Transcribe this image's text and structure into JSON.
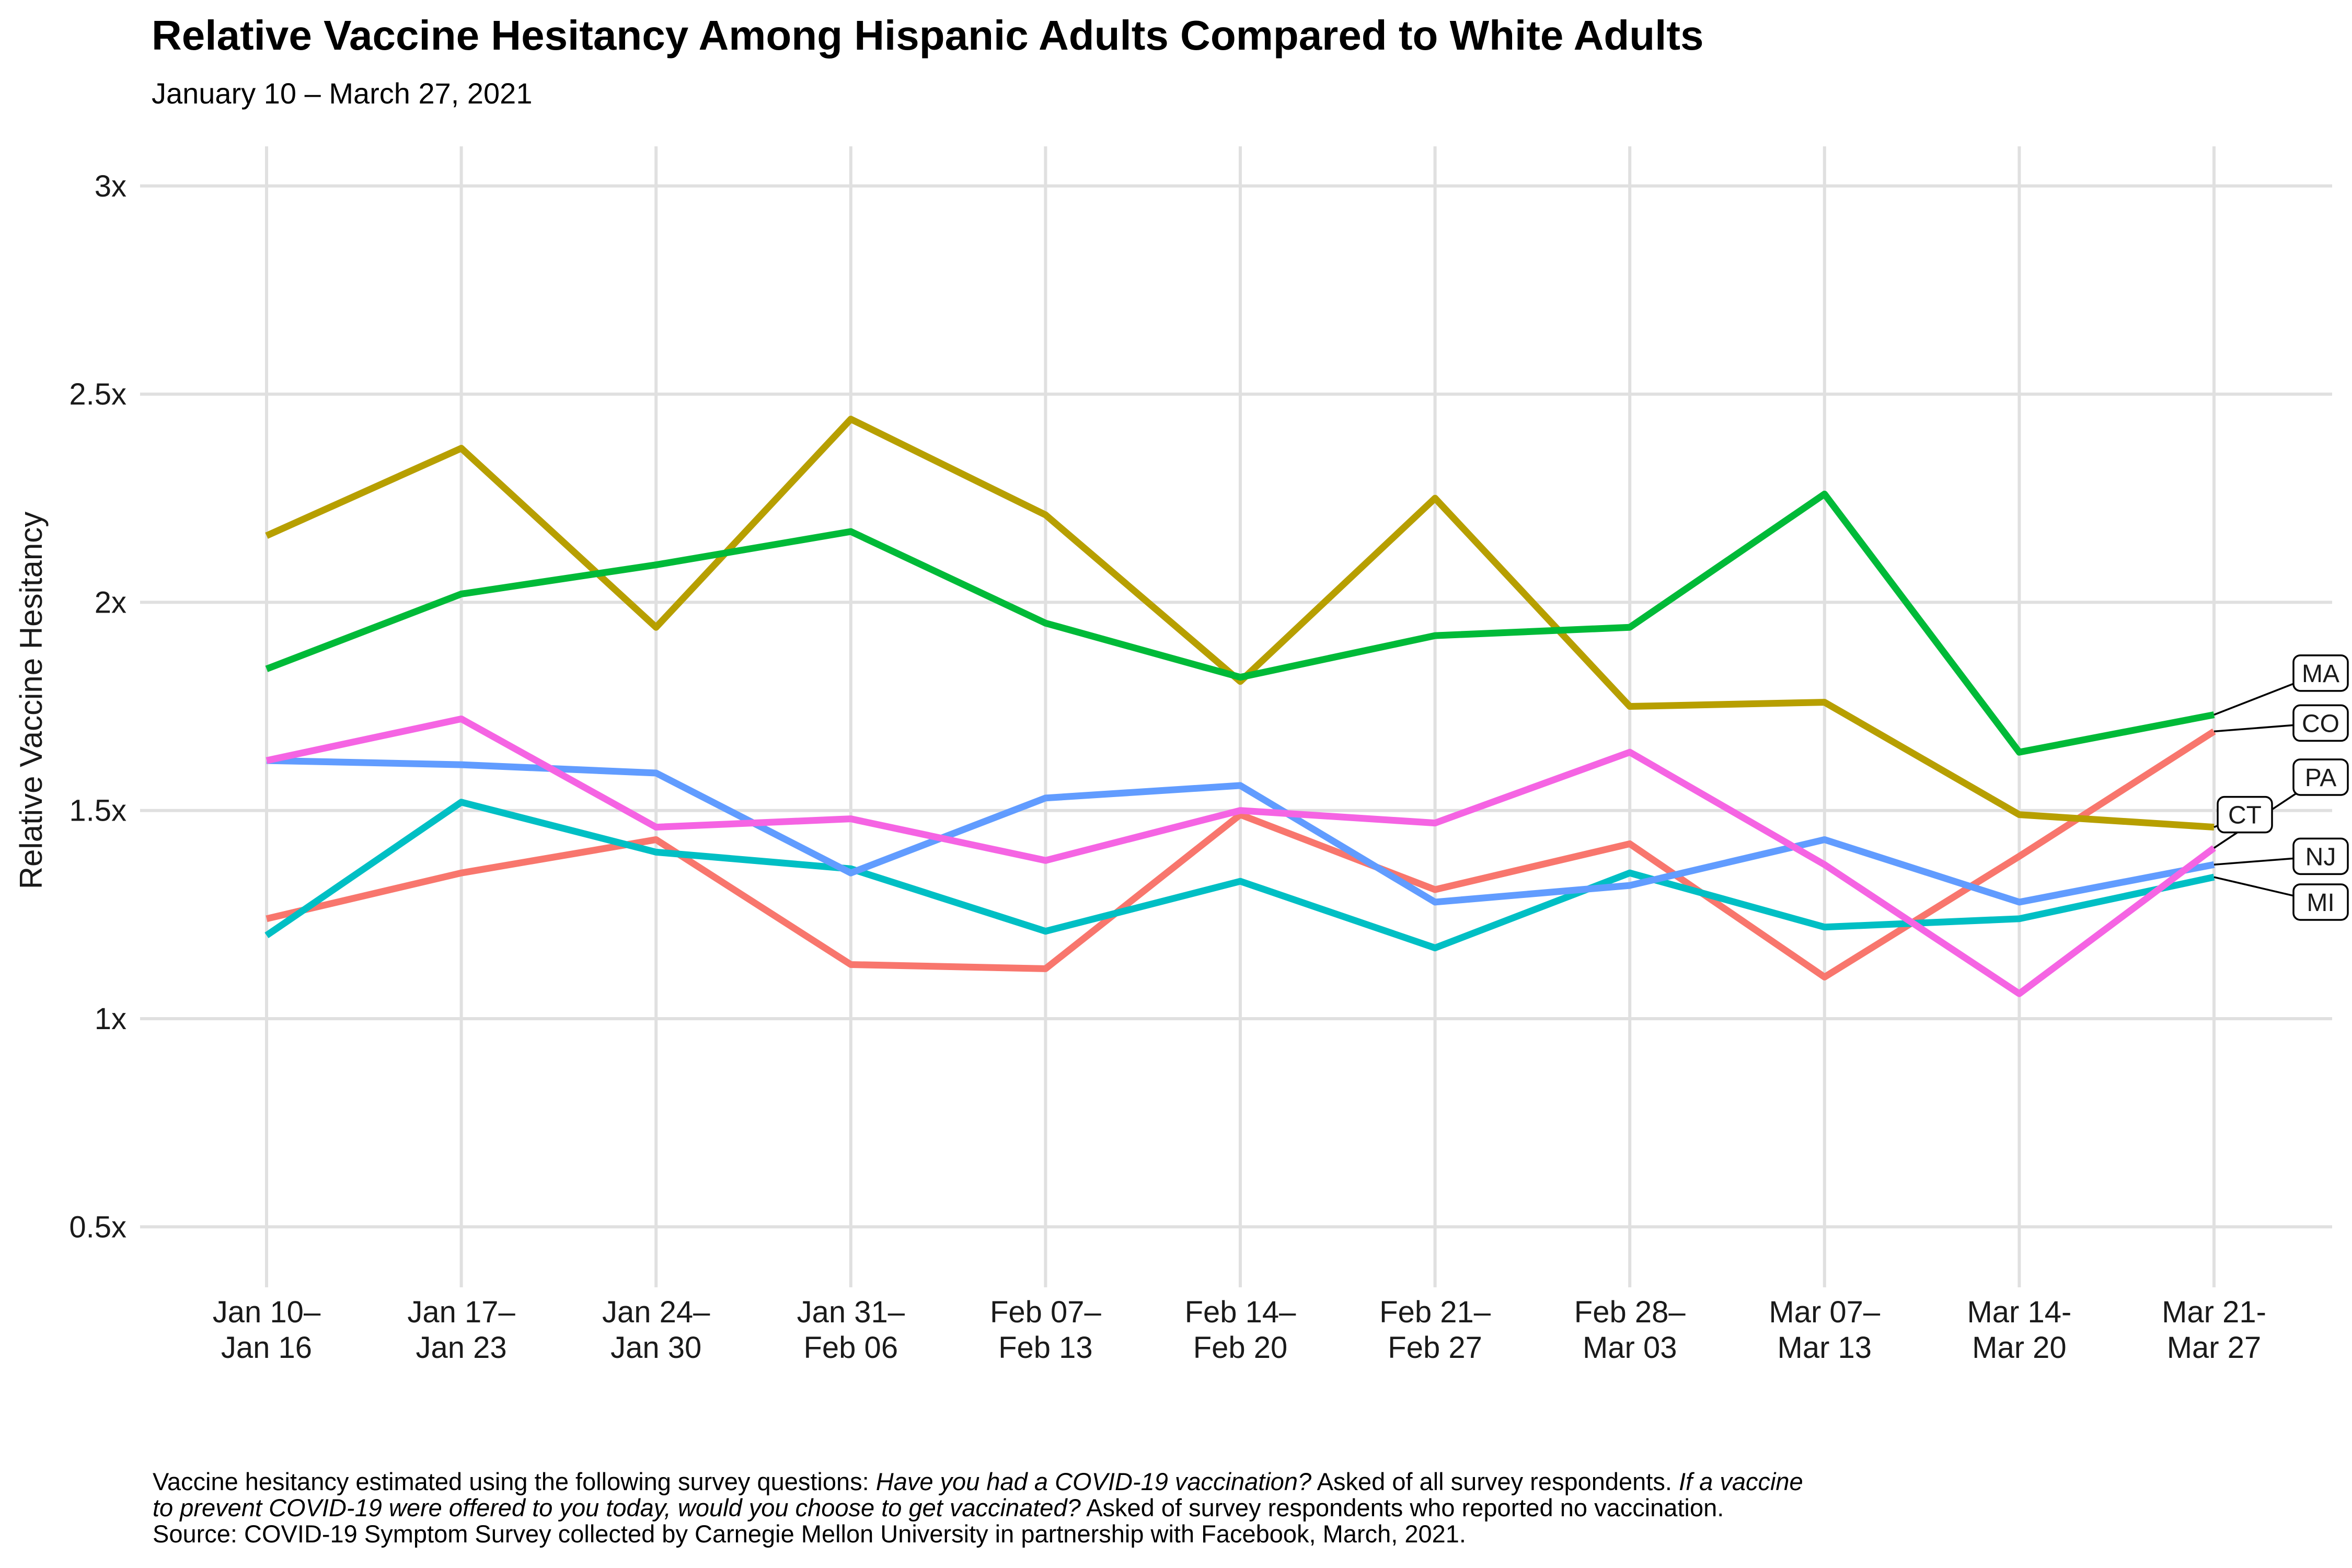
{
  "header": {
    "title": "Relative Vaccine Hesitancy Among Hispanic Adults Compared to White Adults",
    "subtitle": "January 10 – March 27, 2021"
  },
  "chart_data": {
    "type": "line",
    "title": "Relative Vaccine Hesitancy Among Hispanic Adults Compared to White Adults",
    "subtitle": "January 10 – March 27, 2021",
    "xlabel": "",
    "ylabel": "Relative Vaccine Hesitancy",
    "ylim": [
      0.35,
      3.1
    ],
    "grid": true,
    "legend_position": "end-labels-right",
    "y_ticks": [
      {
        "value": 0.5,
        "label": "0.5x"
      },
      {
        "value": 1,
        "label": "1x"
      },
      {
        "value": 1.5,
        "label": "1.5x"
      },
      {
        "value": 2,
        "label": "2x"
      },
      {
        "value": 2.5,
        "label": "2.5x"
      },
      {
        "value": 3,
        "label": "3x"
      }
    ],
    "categories": [
      [
        "Jan 10–",
        "Jan 16"
      ],
      [
        "Jan 17–",
        "Jan 23"
      ],
      [
        "Jan 24–",
        "Jan 30"
      ],
      [
        "Jan 31–",
        "Feb 06"
      ],
      [
        "Feb 07–",
        "Feb 13"
      ],
      [
        "Feb 14–",
        "Feb 20"
      ],
      [
        "Feb 21–",
        "Feb 27"
      ],
      [
        "Feb 28–",
        "Mar 03"
      ],
      [
        "Mar 07–",
        "Mar 13"
      ],
      [
        "Mar 14-",
        "Mar 20"
      ],
      [
        "Mar 21-",
        "Mar 27"
      ]
    ],
    "series": [
      {
        "name": "CO",
        "color": "#F8766D",
        "values": [
          1.24,
          1.35,
          1.43,
          1.13,
          1.12,
          1.49,
          1.31,
          1.42,
          1.1,
          1.39,
          1.69
        ]
      },
      {
        "name": "CT",
        "color": "#B79F00",
        "values": [
          2.16,
          2.37,
          1.94,
          2.44,
          2.21,
          1.81,
          2.25,
          1.75,
          1.76,
          1.49,
          1.46
        ]
      },
      {
        "name": "MA",
        "color": "#00BA38",
        "values": [
          1.84,
          2.02,
          2.09,
          2.17,
          1.95,
          1.82,
          1.92,
          1.94,
          2.26,
          1.64,
          1.73
        ]
      },
      {
        "name": "MI",
        "color": "#00BFC4",
        "values": [
          1.2,
          1.52,
          1.4,
          1.36,
          1.21,
          1.33,
          1.17,
          1.35,
          1.22,
          1.24,
          1.34
        ]
      },
      {
        "name": "NJ",
        "color": "#619CFF",
        "values": [
          1.62,
          1.61,
          1.59,
          1.35,
          1.53,
          1.56,
          1.28,
          1.32,
          1.43,
          1.28,
          1.37
        ]
      },
      {
        "name": "PA",
        "color": "#F564E3",
        "values": [
          1.62,
          1.72,
          1.46,
          1.48,
          1.38,
          1.5,
          1.47,
          1.64,
          1.37,
          1.06,
          1.41
        ]
      }
    ],
    "end_labels": [
      {
        "name": "MA",
        "y_value": 1.83
      },
      {
        "name": "CO",
        "y_value": 1.71
      },
      {
        "name": "PA",
        "y_value": 1.58
      },
      {
        "name": "CT",
        "y_value": 1.49,
        "x_center": 4295
      },
      {
        "name": "NJ",
        "y_value": 1.39
      },
      {
        "name": "MI",
        "y_value": 1.28
      }
    ]
  },
  "caption": {
    "lines": [
      [
        {
          "text": "Vaccine hesitancy estimated using the following survey questions: ",
          "italic": false
        },
        {
          "text": "Have you had a COVID-19 vaccination?",
          "italic": true
        },
        {
          "text": " Asked of all survey respondents. ",
          "italic": false
        },
        {
          "text": "If a vaccine",
          "italic": true
        }
      ],
      [
        {
          "text": "to prevent COVID-19 were offered to you today, would you choose to get vaccinated?",
          "italic": true
        },
        {
          "text": " Asked of survey respondents who reported no vaccination.",
          "italic": false
        }
      ],
      [
        {
          "text": "Source: COVID-19 Symptom Survey collected by Carnegie Mellon University in partnership with Facebook, March, 2021.",
          "italic": false
        }
      ]
    ]
  },
  "style": {
    "gridline_color": "#E0E0E0",
    "leader_color": "#000000",
    "label_box_fill": "#FFFFFF",
    "label_box_border": "#000000",
    "text_color": "#1a1a1a"
  }
}
